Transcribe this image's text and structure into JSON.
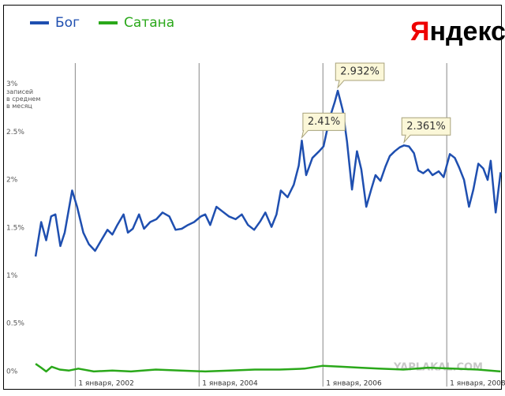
{
  "chart_data": {
    "type": "line",
    "logo": [
      "Я",
      "ндекс"
    ],
    "ylabel": [
      "записей",
      "в среднем",
      "в месяц"
    ],
    "watermark": "YAPLAKAL.COM",
    "xlim": [
      2001.32,
      2008.89
    ],
    "xticks": [
      {
        "value": 2002,
        "label": "1 января, 2002"
      },
      {
        "value": 2004,
        "label": "1 января, 2004"
      },
      {
        "value": 2006,
        "label": "1 января, 2006"
      },
      {
        "value": 2008,
        "label": "1 января, 2008"
      }
    ],
    "ylim": [
      -0.157,
      3.22
    ],
    "yticks": [
      {
        "value": 0,
        "label": "0%"
      },
      {
        "value": 0.5,
        "label": "0.5%"
      },
      {
        "value": 1,
        "label": "1%"
      },
      {
        "value": 1.5,
        "label": "1.5%"
      },
      {
        "value": 2,
        "label": "2%"
      },
      {
        "value": 2.5,
        "label": "2.5%"
      },
      {
        "value": 3,
        "label": "3%"
      }
    ],
    "legend": "top-left",
    "series": [
      {
        "name": "Бог",
        "color": "#1f4fb0",
        "x": [
          2001.36,
          2001.45,
          2001.53,
          2001.61,
          2001.68,
          2001.76,
          2001.83,
          2001.95,
          2002.03,
          2002.13,
          2002.22,
          2002.32,
          2002.42,
          2002.52,
          2002.6,
          2002.68,
          2002.78,
          2002.85,
          2002.93,
          2003.03,
          2003.11,
          2003.21,
          2003.31,
          2003.41,
          2003.52,
          2003.62,
          2003.72,
          2003.82,
          2003.92,
          2004.03,
          2004.1,
          2004.18,
          2004.28,
          2004.38,
          2004.48,
          2004.59,
          2004.69,
          2004.79,
          2004.89,
          2004.99,
          2005.07,
          2005.17,
          2005.25,
          2005.32,
          2005.43,
          2005.53,
          2005.61,
          2005.66,
          2005.73,
          2005.83,
          2005.94,
          2006.01,
          2006.11,
          2006.19,
          2006.24,
          2006.32,
          2006.39,
          2006.47,
          2006.55,
          2006.62,
          2006.7,
          2006.78,
          2006.85,
          2006.93,
          2007.01,
          2007.08,
          2007.16,
          2007.24,
          2007.31,
          2007.39,
          2007.47,
          2007.54,
          2007.62,
          2007.7,
          2007.77,
          2007.87,
          2007.95,
          2008.05,
          2008.13,
          2008.2,
          2008.28,
          2008.36,
          2008.43,
          2008.51,
          2008.59,
          2008.66,
          2008.71,
          2008.79,
          2008.87
        ],
        "values": [
          1.2,
          1.56,
          1.37,
          1.62,
          1.64,
          1.31,
          1.45,
          1.89,
          1.72,
          1.45,
          1.33,
          1.26,
          1.37,
          1.48,
          1.43,
          1.53,
          1.64,
          1.45,
          1.49,
          1.64,
          1.49,
          1.56,
          1.59,
          1.66,
          1.62,
          1.48,
          1.49,
          1.53,
          1.56,
          1.62,
          1.64,
          1.53,
          1.72,
          1.67,
          1.62,
          1.59,
          1.64,
          1.53,
          1.48,
          1.57,
          1.66,
          1.51,
          1.64,
          1.89,
          1.82,
          1.95,
          2.15,
          2.41,
          2.05,
          2.23,
          2.3,
          2.35,
          2.65,
          2.81,
          2.932,
          2.73,
          2.4,
          1.9,
          2.3,
          2.11,
          1.72,
          1.9,
          2.05,
          1.99,
          2.14,
          2.25,
          2.3,
          2.34,
          2.361,
          2.35,
          2.28,
          2.1,
          2.07,
          2.11,
          2.05,
          2.09,
          2.03,
          2.27,
          2.23,
          2.13,
          2.0,
          1.72,
          1.9,
          2.17,
          2.12,
          2.0,
          2.2,
          1.66,
          2.08
        ]
      },
      {
        "name": "Сатана",
        "color": "#2aa81a",
        "x": [
          2001.36,
          2001.45,
          2001.53,
          2001.62,
          2001.75,
          2001.9,
          2002.05,
          2002.3,
          2002.6,
          2002.9,
          2003.3,
          2003.7,
          2004.1,
          2004.5,
          2004.9,
          2005.3,
          2005.7,
          2006.0,
          2006.3,
          2006.6,
          2006.9,
          2007.3,
          2007.7,
          2008.1,
          2008.5,
          2008.87
        ],
        "values": [
          0.08,
          0.04,
          0.0,
          0.05,
          0.02,
          0.01,
          0.03,
          0.0,
          0.01,
          0.0,
          0.02,
          0.01,
          0.0,
          0.01,
          0.02,
          0.02,
          0.03,
          0.06,
          0.05,
          0.04,
          0.03,
          0.02,
          0.04,
          0.03,
          0.02,
          0.0
        ]
      }
    ],
    "annotations": [
      {
        "x": 2005.66,
        "y": 2.41,
        "label": "2.41%"
      },
      {
        "x": 2006.24,
        "y": 2.932,
        "label": "2.932%"
      },
      {
        "x": 2007.31,
        "y": 2.361,
        "label": "2.361%"
      }
    ]
  }
}
